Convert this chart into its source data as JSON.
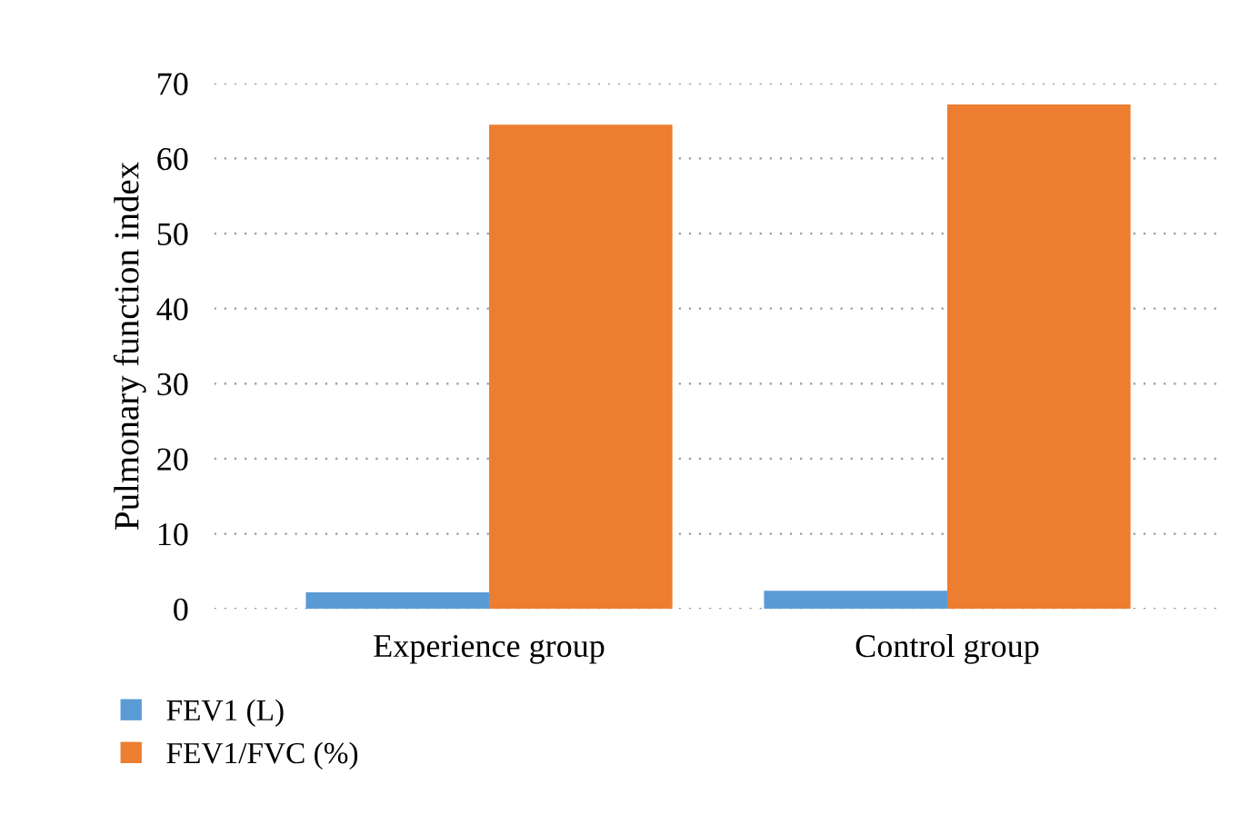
{
  "chart_data": {
    "type": "bar",
    "ylabel": "Pulmonary function index",
    "categories": [
      "Experience group",
      "Control group"
    ],
    "series": [
      {
        "name": "FEV1 (L)",
        "color": "#5b9bd5",
        "values": [
          2.2,
          2.4
        ]
      },
      {
        "name": "FEV1/FVC (%)",
        "color": "#ed7d31",
        "values": [
          64.5,
          67.2
        ]
      }
    ],
    "ylim": [
      0,
      70
    ],
    "yticks": [
      0,
      10,
      20,
      30,
      40,
      50,
      60,
      70
    ],
    "grid": "y",
    "legend": "bottom left"
  }
}
